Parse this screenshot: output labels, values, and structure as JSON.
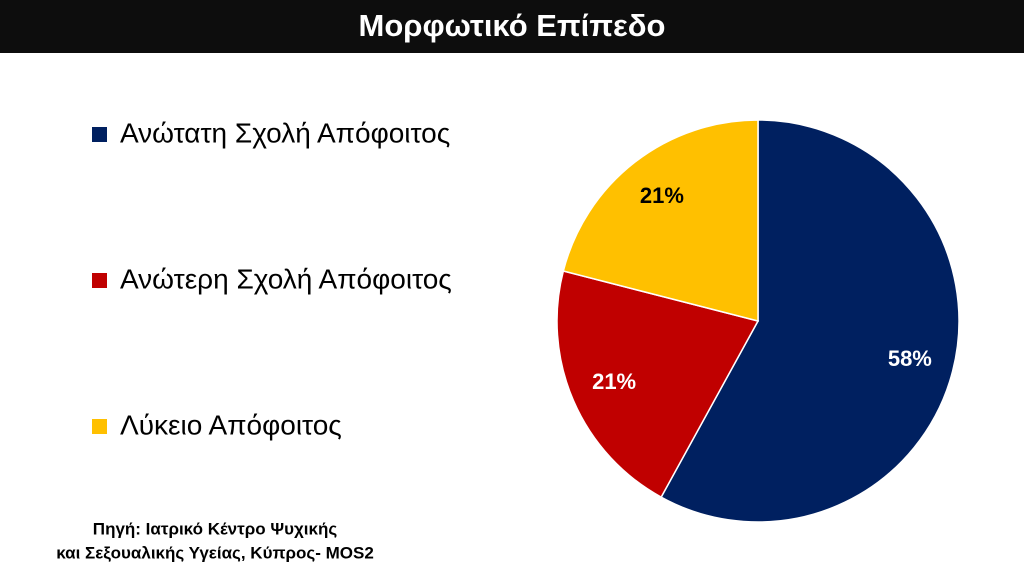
{
  "chart_data": {
    "type": "pie",
    "title": "Μορφωτικό Επίπεδο",
    "categories": [
      "Ανώτατη Σχολή Απόφοιτος",
      "Ανώτερη Σχολή Απόφοιτος",
      "Λύκειο Απόφοιτος"
    ],
    "values": [
      58,
      21,
      21
    ],
    "value_labels": [
      "58%",
      "21%",
      "21%"
    ],
    "colors": [
      "#002060",
      "#c00000",
      "#ffc000"
    ],
    "label_colors": [
      "#ffffff",
      "#ffffff",
      "#000000"
    ],
    "source": [
      "Πηγή: Ιατρικό Κέντρο Ψυχικής",
      "και Σεξουαλικής Υγείας, Κύπρος- MOS2"
    ]
  }
}
